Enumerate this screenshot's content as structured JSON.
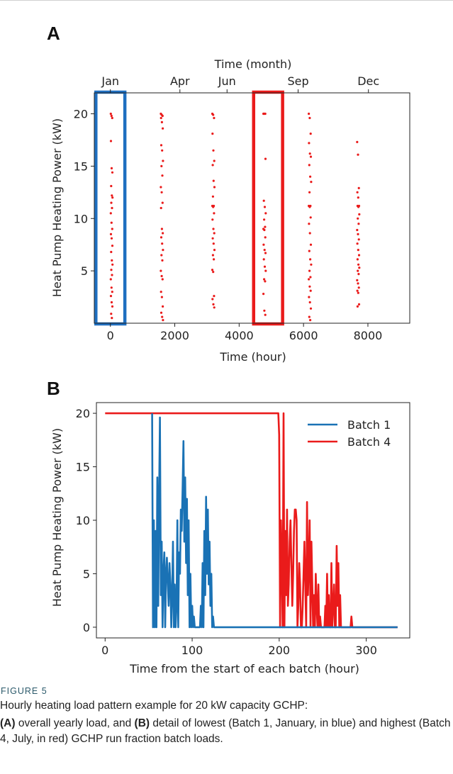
{
  "chart_data": [
    {
      "panel": "A",
      "type": "scatter",
      "xlabel": "Time (hour)",
      "ylabel": "Heat Pump Heating Power (kW)",
      "x2label": "Time (month)",
      "xlim": [
        -500,
        9300
      ],
      "ylim": [
        0,
        22
      ],
      "xticks": [
        0,
        2000,
        4000,
        6000,
        8000
      ],
      "yticks": [
        5,
        10,
        15,
        20
      ],
      "top_ticks": [
        {
          "label": "Jan",
          "hour": 0
        },
        {
          "label": "Apr",
          "hour": 2160
        },
        {
          "label": "Jun",
          "hour": 3624
        },
        {
          "label": "Sep",
          "hour": 5832
        },
        {
          "label": "Dec",
          "hour": 8016
        }
      ],
      "batches": [
        {
          "center": 40,
          "spread": 90,
          "values": [
            20,
            19.8,
            19.6,
            17.4,
            14.8,
            14.4,
            13.1,
            12.2,
            12.0,
            11.5,
            11.0,
            10.5,
            9.6,
            9.0,
            8.5,
            8.1,
            7.4,
            6.8,
            6.0,
            5.6,
            5.1,
            4.6,
            4.2,
            3.4,
            3.0,
            2.6,
            2.0,
            1.6,
            0.9,
            0.5
          ]
        },
        {
          "center": 1600,
          "spread": 110,
          "values": [
            20,
            19.9,
            19.8,
            19.6,
            19.2,
            18.6,
            17.0,
            16.5,
            15.5,
            15.0,
            14.1,
            13.0,
            12.5,
            11.5,
            11.0,
            9.0,
            8.6,
            8.2,
            7.6,
            7.0,
            6.5,
            6.0,
            5.0,
            4.5,
            4.2,
            3.0,
            2.5,
            1.6,
            1.0,
            0.6,
            0.3
          ]
        },
        {
          "center": 3200,
          "spread": 110,
          "values": [
            20,
            19.9,
            19.6,
            18.1,
            16.5,
            15.5,
            15.1,
            13.6,
            13.0,
            12.1,
            11.2,
            11.2,
            11.1,
            10.5,
            9.9,
            9.0,
            8.6,
            8.1,
            7.6,
            7.0,
            6.5,
            6.1,
            5.1,
            4.9,
            2.6,
            2.3,
            1.8,
            1.5
          ]
        },
        {
          "center": 4790,
          "spread": 120,
          "values": [
            20,
            20,
            20,
            20,
            20,
            15.7,
            11.7,
            11.1,
            10.5,
            9.9,
            9.2,
            9.0,
            8.9,
            8.2,
            7.5,
            7.0,
            6.7,
            6.1,
            5.4,
            5.0,
            4.2,
            4.0,
            2.8,
            1.2,
            0.8
          ]
        },
        {
          "center": 6200,
          "spread": 120,
          "values": [
            20,
            19.6,
            18.1,
            17.2,
            16.2,
            15.9,
            15.1,
            14.0,
            13.5,
            12.5,
            11.2,
            11.2,
            11.1,
            10.1,
            9.5,
            8.6,
            7.5,
            6.9,
            6.1,
            5.6,
            5.0,
            4.4,
            4.2,
            3.5,
            3.1,
            2.5,
            2.0,
            1.4,
            0.6,
            0.3
          ]
        },
        {
          "center": 7700,
          "spread": 110,
          "values": [
            17.3,
            16.1,
            12.9,
            12.5,
            12.0,
            11.2,
            11.2,
            11.1,
            10.4,
            10.0,
            9.5,
            8.9,
            8.5,
            8.0,
            7.6,
            7.0,
            6.5,
            6.1,
            5.6,
            5.3,
            5.0,
            4.7,
            4.1,
            3.8,
            3.4,
            3.1,
            2.9,
            1.8,
            1.6
          ]
        }
      ],
      "highlights": [
        {
          "x0": -450,
          "x1": 450,
          "color": "#1f6fc0"
        },
        {
          "x0": 4450,
          "x1": 5350,
          "color": "#ea1b1b"
        }
      ]
    },
    {
      "panel": "B",
      "type": "line",
      "xlabel": "Time from the start of each batch (hour)",
      "ylabel": "Heat Pump Heating Power (kW)",
      "xlim": [
        -10,
        350
      ],
      "ylim": [
        -1,
        21
      ],
      "xticks": [
        0,
        100,
        200,
        300
      ],
      "yticks": [
        0,
        5,
        10,
        15,
        20
      ],
      "legend_position": "upper-right",
      "series": [
        {
          "name": "Batch 1",
          "color": "#1a72b5",
          "x": [
            54,
            55,
            56,
            57,
            58,
            59,
            60,
            61,
            62,
            63,
            64,
            65,
            66,
            67,
            68,
            69,
            70,
            71,
            72,
            73,
            74,
            75,
            76,
            77,
            78,
            79,
            80,
            81,
            82,
            83,
            84,
            85,
            86,
            87,
            88,
            89,
            90,
            91,
            92,
            93,
            94,
            95,
            96,
            97,
            98,
            99,
            100,
            101,
            102,
            103,
            104,
            105,
            106,
            107,
            108,
            109,
            110,
            111,
            112,
            113,
            114,
            115,
            116,
            117,
            118,
            119,
            120,
            121,
            122,
            123,
            124,
            125,
            126,
            336
          ],
          "y": [
            20,
            0,
            10,
            0,
            9,
            0,
            14,
            2,
            12,
            19.6,
            3,
            8,
            0,
            5,
            7,
            0,
            5,
            6.5,
            4,
            2,
            6,
            4,
            0,
            3,
            8,
            0,
            4,
            0,
            2,
            10,
            0,
            7,
            5,
            11,
            9,
            13,
            17.4,
            8,
            14,
            6,
            12,
            3,
            10,
            0,
            5,
            0,
            2,
            0,
            1,
            0,
            0,
            0,
            0,
            0,
            0,
            0,
            2,
            0,
            6,
            0,
            9,
            3,
            12.2,
            5,
            11,
            4,
            8,
            2,
            5,
            0,
            1,
            0,
            0,
            0
          ]
        },
        {
          "name": "Batch 4",
          "color": "#ea1b1b",
          "x": [
            0,
            199,
            200,
            201,
            202,
            203,
            204,
            205,
            206,
            207,
            208,
            209,
            210,
            211,
            212,
            213,
            214,
            215,
            216,
            217,
            218,
            219,
            220,
            221,
            222,
            223,
            224,
            225,
            226,
            227,
            228,
            229,
            230,
            231,
            232,
            233,
            234,
            235,
            236,
            237,
            238,
            239,
            240,
            241,
            242,
            243,
            244,
            245,
            246,
            247,
            248,
            249,
            250,
            251,
            252,
            253,
            254,
            255,
            256,
            257,
            258,
            259,
            260,
            261,
            262,
            263,
            264,
            265,
            266,
            267,
            268,
            269,
            270,
            271,
            272,
            273,
            274,
            275,
            276,
            277,
            278,
            279,
            280,
            281,
            282,
            283,
            284,
            285,
            286,
            336
          ],
          "y": [
            20,
            20,
            18,
            0,
            10,
            6,
            0,
            20,
            0,
            9,
            3,
            11,
            2,
            4,
            8,
            10,
            6,
            2,
            5,
            9,
            11,
            11,
            10,
            0,
            2,
            6,
            4,
            0,
            0,
            2,
            5,
            8,
            4,
            0,
            11.7,
            3,
            6,
            10,
            0,
            8,
            4,
            0,
            3,
            0,
            5,
            2,
            0,
            4,
            0,
            1,
            0,
            0,
            0,
            0,
            0,
            2,
            0,
            5,
            0,
            3,
            0,
            0,
            6,
            0,
            2,
            4,
            0,
            0,
            7.6,
            2,
            6,
            0,
            3,
            0,
            0,
            0,
            0,
            0,
            0,
            0,
            0,
            0,
            0,
            0,
            0,
            1,
            0,
            0,
            0,
            0
          ]
        }
      ]
    }
  ],
  "caption": {
    "label": "FIGURE 5",
    "line1": "Hourly heating load pattern example for 20 kW capacity GCHP:",
    "a_tag": "(A)",
    "a_text": " overall yearly load, and ",
    "b_tag": "(B)",
    "b_text": " detail of lowest (Batch 1, January, in blue) and highest (Batch 4, July, in red) GCHP run fraction batch loads."
  }
}
